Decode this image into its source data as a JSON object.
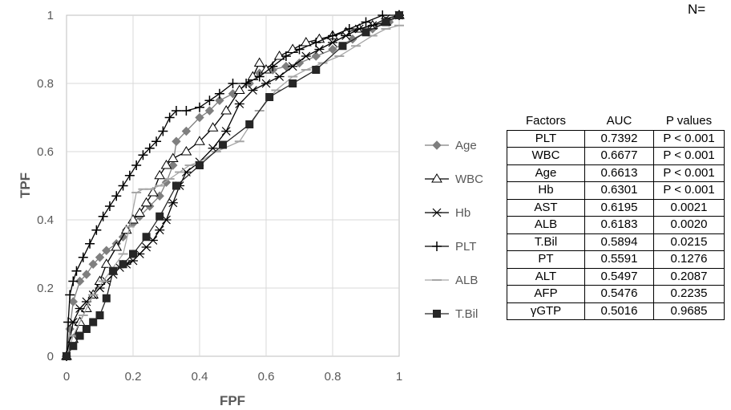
{
  "top_note": "N=",
  "table": {
    "headers": [
      "Factors",
      "AUC",
      "P values"
    ],
    "rows": [
      [
        "PLT",
        "0.7392",
        "P < 0.001"
      ],
      [
        "WBC",
        "0.6677",
        "P < 0.001"
      ],
      [
        "Age",
        "0.6613",
        "P < 0.001"
      ],
      [
        "Hb",
        "0.6301",
        "P < 0.001"
      ],
      [
        "AST",
        "0.6195",
        "0.0021"
      ],
      [
        "ALB",
        "0.6183",
        "0.0020"
      ],
      [
        "T.Bil",
        "0.5894",
        "0.0215"
      ],
      [
        "PT",
        "0.5591",
        "0.1276"
      ],
      [
        "ALT",
        "0.5497",
        "0.2087"
      ],
      [
        "AFP",
        "0.5476",
        "0.2235"
      ],
      [
        "γGTP",
        "0.5016",
        "0.9685"
      ]
    ]
  },
  "chart_data": {
    "type": "line",
    "title": "",
    "xlabel": "FPF",
    "ylabel": "TPF",
    "xlim": [
      0,
      1
    ],
    "ylim": [
      0,
      1
    ],
    "xticks": [
      "0",
      "0.2",
      "0.4",
      "0.6",
      "0.8",
      "1"
    ],
    "yticks": [
      "0",
      "0.2",
      "0.4",
      "0.6",
      "0.8",
      "1"
    ],
    "grid": true,
    "legend_position": "right",
    "series": [
      {
        "name": "Age",
        "marker": "diamond",
        "color": "#7f7f7f",
        "x": [
          0,
          0.01,
          0.02,
          0.04,
          0.06,
          0.08,
          0.1,
          0.12,
          0.15,
          0.17,
          0.18,
          0.2,
          0.22,
          0.25,
          0.28,
          0.3,
          0.32,
          0.33,
          0.36,
          0.4,
          0.43,
          0.46,
          0.5,
          0.55,
          0.58,
          0.62,
          0.66,
          0.7,
          0.75,
          0.8,
          0.86,
          0.92,
          0.97,
          1.0
        ],
        "y": [
          0,
          0.08,
          0.16,
          0.22,
          0.24,
          0.27,
          0.29,
          0.31,
          0.33,
          0.35,
          0.37,
          0.39,
          0.41,
          0.44,
          0.47,
          0.51,
          0.56,
          0.63,
          0.66,
          0.7,
          0.72,
          0.75,
          0.77,
          0.8,
          0.83,
          0.84,
          0.85,
          0.86,
          0.88,
          0.9,
          0.93,
          0.96,
          0.98,
          1.0
        ]
      },
      {
        "name": "WBC",
        "marker": "triangle-open",
        "color": "#000000",
        "x": [
          0,
          0.02,
          0.04,
          0.06,
          0.08,
          0.1,
          0.12,
          0.15,
          0.18,
          0.2,
          0.22,
          0.24,
          0.26,
          0.28,
          0.3,
          0.32,
          0.36,
          0.4,
          0.44,
          0.48,
          0.52,
          0.56,
          0.58,
          0.6,
          0.64,
          0.68,
          0.72,
          0.76,
          0.8,
          0.84,
          0.88,
          0.92,
          0.96,
          1.0
        ],
        "y": [
          0,
          0.05,
          0.1,
          0.14,
          0.18,
          0.22,
          0.27,
          0.32,
          0.37,
          0.4,
          0.42,
          0.45,
          0.48,
          0.53,
          0.56,
          0.58,
          0.6,
          0.63,
          0.67,
          0.72,
          0.78,
          0.82,
          0.86,
          0.84,
          0.88,
          0.9,
          0.92,
          0.93,
          0.94,
          0.95,
          0.96,
          0.97,
          0.98,
          1.0
        ]
      },
      {
        "name": "Hb",
        "marker": "asterisk",
        "color": "#000000",
        "x": [
          0,
          0.02,
          0.04,
          0.06,
          0.08,
          0.1,
          0.12,
          0.14,
          0.16,
          0.18,
          0.2,
          0.22,
          0.24,
          0.26,
          0.28,
          0.3,
          0.32,
          0.34,
          0.36,
          0.4,
          0.44,
          0.48,
          0.52,
          0.56,
          0.6,
          0.64,
          0.68,
          0.72,
          0.76,
          0.8,
          0.84,
          0.88,
          0.92,
          0.96,
          1.0
        ],
        "y": [
          0,
          0.1,
          0.14,
          0.16,
          0.18,
          0.2,
          0.22,
          0.24,
          0.26,
          0.27,
          0.28,
          0.3,
          0.32,
          0.34,
          0.37,
          0.4,
          0.45,
          0.5,
          0.54,
          0.57,
          0.61,
          0.66,
          0.74,
          0.78,
          0.8,
          0.82,
          0.85,
          0.88,
          0.9,
          0.92,
          0.94,
          0.96,
          0.97,
          0.99,
          1.0
        ]
      },
      {
        "name": "PLT",
        "marker": "plus",
        "color": "#000000",
        "x": [
          0,
          0.005,
          0.01,
          0.02,
          0.03,
          0.05,
          0.07,
          0.09,
          0.11,
          0.13,
          0.15,
          0.17,
          0.19,
          0.21,
          0.23,
          0.25,
          0.27,
          0.29,
          0.31,
          0.33,
          0.36,
          0.4,
          0.43,
          0.46,
          0.5,
          0.54,
          0.58,
          0.62,
          0.66,
          0.7,
          0.75,
          0.8,
          0.85,
          0.9,
          0.95,
          1.0
        ],
        "y": [
          0,
          0.1,
          0.18,
          0.22,
          0.25,
          0.29,
          0.33,
          0.37,
          0.41,
          0.44,
          0.47,
          0.5,
          0.53,
          0.56,
          0.59,
          0.61,
          0.63,
          0.66,
          0.7,
          0.72,
          0.72,
          0.73,
          0.75,
          0.77,
          0.8,
          0.8,
          0.82,
          0.85,
          0.88,
          0.9,
          0.92,
          0.94,
          0.96,
          0.98,
          1.0,
          1.0
        ]
      },
      {
        "name": "ALB",
        "marker": "dash",
        "color": "#a6a6a6",
        "x": [
          0,
          0.02,
          0.05,
          0.08,
          0.11,
          0.14,
          0.17,
          0.19,
          0.21,
          0.23,
          0.25,
          0.28,
          0.31,
          0.34,
          0.37,
          0.4,
          0.45,
          0.52,
          0.58,
          0.63,
          0.68,
          0.72,
          0.77,
          0.82,
          0.87,
          0.92,
          0.96,
          1.0
        ],
        "y": [
          0,
          0.06,
          0.12,
          0.18,
          0.22,
          0.26,
          0.3,
          0.38,
          0.48,
          0.49,
          0.49,
          0.5,
          0.52,
          0.54,
          0.56,
          0.57,
          0.6,
          0.63,
          0.72,
          0.78,
          0.82,
          0.84,
          0.86,
          0.88,
          0.91,
          0.94,
          0.96,
          0.97
        ]
      },
      {
        "name": "T.Bil",
        "marker": "square",
        "color": "#262626",
        "x": [
          0,
          0.02,
          0.04,
          0.06,
          0.08,
          0.1,
          0.12,
          0.14,
          0.17,
          0.2,
          0.24,
          0.28,
          0.33,
          0.4,
          0.47,
          0.55,
          0.61,
          0.68,
          0.75,
          0.83,
          0.9,
          0.96,
          1.0
        ],
        "y": [
          0,
          0.03,
          0.06,
          0.08,
          0.1,
          0.12,
          0.17,
          0.25,
          0.27,
          0.3,
          0.35,
          0.41,
          0.5,
          0.56,
          0.62,
          0.68,
          0.76,
          0.8,
          0.84,
          0.91,
          0.95,
          0.98,
          1.0
        ]
      }
    ]
  }
}
